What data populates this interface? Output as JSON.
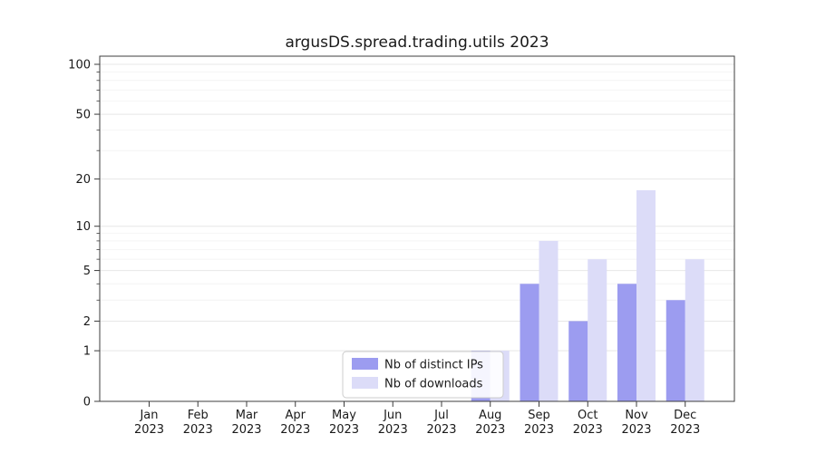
{
  "chart_data": {
    "type": "bar",
    "title": "argusDS.spread.trading.utils 2023",
    "xlabel": "",
    "ylabel": "",
    "categories": [
      "Jan 2023",
      "Feb 2023",
      "Mar 2023",
      "Apr 2023",
      "May 2023",
      "Jun 2023",
      "Jul 2023",
      "Aug 2023",
      "Sep 2023",
      "Oct 2023",
      "Nov 2023",
      "Dec 2023"
    ],
    "x_tick_labels": [
      [
        "Jan",
        "2023"
      ],
      [
        "Feb",
        "2023"
      ],
      [
        "Mar",
        "2023"
      ],
      [
        "Apr",
        "2023"
      ],
      [
        "May",
        "2023"
      ],
      [
        "Jun",
        "2023"
      ],
      [
        "Jul",
        "2023"
      ],
      [
        "Aug",
        "2023"
      ],
      [
        "Sep",
        "2023"
      ],
      [
        "Oct",
        "2023"
      ],
      [
        "Nov",
        "2023"
      ],
      [
        "Dec",
        "2023"
      ]
    ],
    "series": [
      {
        "name": "Nb of distinct IPs",
        "color": "#9c9cf0",
        "values": [
          0,
          0,
          0,
          0,
          0,
          0,
          0,
          1,
          4,
          2,
          4,
          3
        ]
      },
      {
        "name": "Nb of downloads",
        "color": "#dcdcf8",
        "values": [
          0,
          0,
          0,
          0,
          0,
          0,
          0,
          1,
          8,
          6,
          17,
          6
        ]
      }
    ],
    "yscale": "log1p",
    "ylim": [
      0,
      112
    ],
    "y_ticks": [
      0,
      1,
      2,
      5,
      10,
      20,
      50,
      100
    ],
    "y_minor_ticks": [
      3,
      4,
      6,
      7,
      8,
      9,
      30,
      40,
      60,
      70,
      80,
      90
    ],
    "grid": true,
    "legend_position": "lower center"
  },
  "colors": {
    "grid_major": "#e7e7e7",
    "grid_minor": "#f4f4f4",
    "spine": "#3c3c3c",
    "text": "#1a1a1a",
    "legend_border": "#cccccc",
    "legend_bg": "#ffffff"
  }
}
